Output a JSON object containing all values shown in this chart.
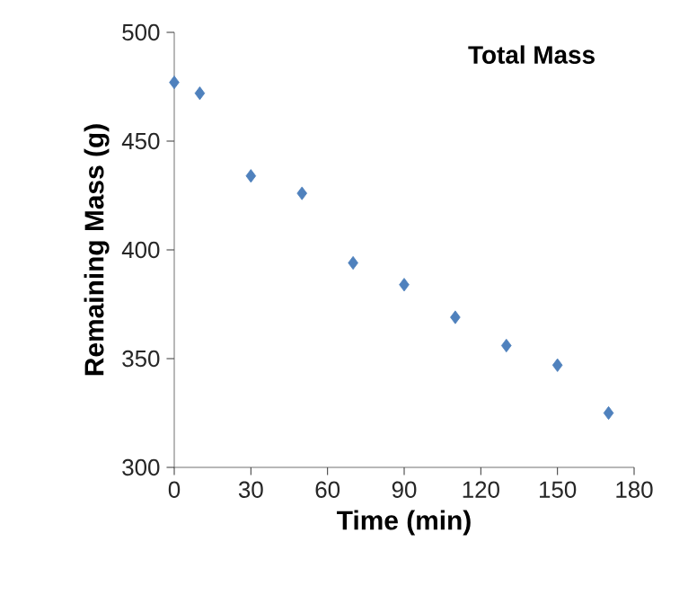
{
  "chart_data": {
    "type": "scatter",
    "title": "Total Mass",
    "xlabel": "Time (min)",
    "ylabel": "Remaining Mass (g)",
    "x": [
      0,
      10,
      30,
      50,
      70,
      90,
      110,
      130,
      150,
      170
    ],
    "series": [
      {
        "color": "#4f81bd",
        "values": [
          477,
          472,
          434,
          426,
          394,
          384,
          369,
          356,
          347,
          325
        ]
      }
    ],
    "xlim": [
      0,
      180
    ],
    "xticks": [
      0,
      30,
      60,
      90,
      120,
      150,
      180
    ],
    "ylim": [
      300,
      500
    ],
    "yticks": [
      300,
      350,
      400,
      450,
      500
    ],
    "marker": "diamond"
  }
}
